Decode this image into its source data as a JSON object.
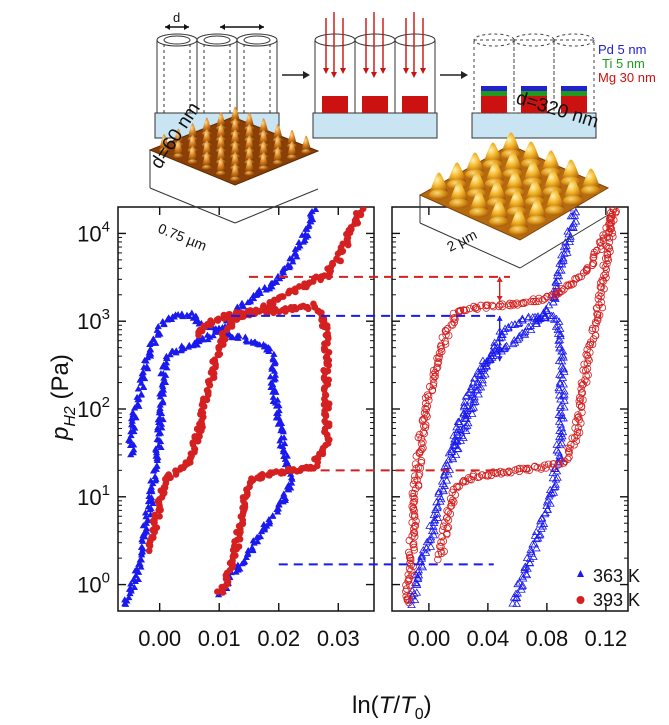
{
  "colors": {
    "series_363": "#1a1aee",
    "series_393": "#d42020",
    "pd": "#2222cc",
    "ti": "#1f9a1f",
    "mg": "#cc1111",
    "substrate": "#c9e4f2"
  },
  "schematic": {
    "d_label": "d",
    "layers": [
      "Pd 5 nm",
      "Ti 5 nm",
      "Mg 30 nm"
    ]
  },
  "afm": {
    "left": {
      "d_label": "d=60 nm",
      "scale_label": "0.75 µm"
    },
    "right": {
      "d_label": "d=320 nm",
      "scale_label": "2 µm"
    }
  },
  "chart_data": {
    "type": "scatter",
    "xlabel": "ln(T/T0)",
    "ylabel": "pH2 (Pa)",
    "y_scale": "log",
    "ylim": [
      0.5,
      20000
    ],
    "y_ticks": [
      {
        "value": 1,
        "mantissa": "10",
        "exp": "0"
      },
      {
        "value": 10,
        "mantissa": "10",
        "exp": "1"
      },
      {
        "value": 100,
        "mantissa": "10",
        "exp": "2"
      },
      {
        "value": 1000,
        "mantissa": "10",
        "exp": "3"
      },
      {
        "value": 10000,
        "mantissa": "10",
        "exp": "4"
      }
    ],
    "legend": [
      {
        "label": "363 K",
        "marker": "triangle"
      },
      {
        "label": "393 K",
        "marker": "circle"
      }
    ],
    "panels": [
      {
        "name": "d=60 nm",
        "marker_style": "filled",
        "xlim": [
          -0.007,
          0.036
        ],
        "x_ticks": [
          0.0,
          0.01,
          0.02,
          0.03
        ],
        "x_tick_labels": [
          "0.00",
          "0.01",
          "0.02",
          "0.03"
        ],
        "series": [
          {
            "temperature": "363 K",
            "hydrogenation": [
              [
                -0.006,
                0.6
              ],
              [
                -0.004,
                1.2
              ],
              [
                -0.003,
                2.5
              ],
              [
                -0.002,
                6
              ],
              [
                -0.001,
                15
              ],
              [
                0.0,
                50
              ],
              [
                0.0005,
                200
              ],
              [
                0.001,
                400
              ],
              [
                0.003,
                480
              ],
              [
                0.006,
                560
              ],
              [
                0.009,
                700
              ],
              [
                0.011,
                900
              ],
              [
                0.013,
                1300
              ],
              [
                0.015,
                1800
              ],
              [
                0.018,
                2400
              ],
              [
                0.02,
                3000
              ],
              [
                0.022,
                4500
              ],
              [
                0.024,
                8000
              ],
              [
                0.025,
                12000
              ],
              [
                0.026,
                20000
              ]
            ],
            "dehydrogenation": [
              [
                0.01,
                0.8
              ],
              [
                0.013,
                1.5
              ],
              [
                0.016,
                3
              ],
              [
                0.019,
                6
              ],
              [
                0.021,
                10
              ],
              [
                0.022,
                15
              ],
              [
                0.021,
                30
              ],
              [
                0.02,
                70
              ],
              [
                0.019,
                200
              ],
              [
                0.019,
                400
              ],
              [
                0.018,
                500
              ],
              [
                0.015,
                600
              ],
              [
                0.012,
                700
              ],
              [
                0.008,
                900
              ],
              [
                0.005,
                1200
              ],
              [
                0.002,
                1150
              ],
              [
                0.0,
                800
              ],
              [
                -0.002,
                400
              ],
              [
                -0.004,
                100
              ],
              [
                -0.005,
                30
              ]
            ]
          },
          {
            "temperature": "393 K",
            "hydrogenation": [
              [
                -0.002,
                2.5
              ],
              [
                0.0,
                8
              ],
              [
                0.001,
                15
              ],
              [
                0.002,
                18
              ],
              [
                0.003,
                20
              ],
              [
                0.005,
                25
              ],
              [
                0.007,
                70
              ],
              [
                0.008,
                150
              ],
              [
                0.009,
                300
              ],
              [
                0.011,
                800
              ],
              [
                0.013,
                1100
              ],
              [
                0.016,
                1300
              ],
              [
                0.019,
                1600
              ],
              [
                0.021,
                2000
              ],
              [
                0.024,
                2500
              ],
              [
                0.026,
                3000
              ],
              [
                0.028,
                3300
              ],
              [
                0.03,
                5000
              ],
              [
                0.032,
                10000
              ],
              [
                0.034,
                20000
              ]
            ],
            "dehydrogenation": [
              [
                0.01,
                0.8
              ],
              [
                0.012,
                1.5
              ],
              [
                0.013,
                3
              ],
              [
                0.014,
                8
              ],
              [
                0.015,
                15
              ],
              [
                0.018,
                18
              ],
              [
                0.022,
                20
              ],
              [
                0.026,
                22
              ],
              [
                0.028,
                40
              ],
              [
                0.028,
                150
              ],
              [
                0.028,
                400
              ],
              [
                0.028,
                800
              ],
              [
                0.027,
                1200
              ],
              [
                0.026,
                1500
              ],
              [
                0.023,
                1400
              ],
              [
                0.019,
                1300
              ],
              [
                0.015,
                1250
              ],
              [
                0.012,
                1200
              ],
              [
                0.009,
                1000
              ],
              [
                0.006,
                700
              ]
            ]
          }
        ]
      },
      {
        "name": "d=320 nm",
        "marker_style": "open",
        "xlim": [
          -0.025,
          0.135
        ],
        "x_ticks": [
          0.0,
          0.04,
          0.08,
          0.12
        ],
        "x_tick_labels": [
          "0.00",
          "0.04",
          "0.08",
          "0.12"
        ],
        "series": [
          {
            "temperature": "363 K",
            "hydrogenation": [
              [
                -0.012,
                0.6
              ],
              [
                -0.006,
                1.5
              ],
              [
                0.0,
                3
              ],
              [
                0.006,
                8
              ],
              [
                0.012,
                20
              ],
              [
                0.02,
                60
              ],
              [
                0.028,
                150
              ],
              [
                0.036,
                300
              ],
              [
                0.044,
                450
              ],
              [
                0.052,
                500
              ],
              [
                0.06,
                600
              ],
              [
                0.068,
                800
              ],
              [
                0.076,
                1100
              ],
              [
                0.082,
                1500
              ],
              [
                0.088,
                3000
              ],
              [
                0.094,
                8000
              ],
              [
                0.1,
                20000
              ]
            ],
            "dehydrogenation": [
              [
                0.058,
                0.6
              ],
              [
                0.066,
                1.5
              ],
              [
                0.072,
                3
              ],
              [
                0.078,
                6
              ],
              [
                0.084,
                12
              ],
              [
                0.088,
                30
              ],
              [
                0.09,
                100
              ],
              [
                0.09,
                400
              ],
              [
                0.089,
                800
              ],
              [
                0.086,
                1100
              ],
              [
                0.08,
                1150
              ],
              [
                0.07,
                1100
              ],
              [
                0.06,
                1000
              ],
              [
                0.05,
                800
              ],
              [
                0.04,
                350
              ],
              [
                0.032,
                150
              ],
              [
                0.024,
                60
              ],
              [
                0.016,
                30
              ]
            ]
          },
          {
            "temperature": "393 K",
            "hydrogenation": [
              [
                -0.015,
                0.6
              ],
              [
                -0.012,
                2
              ],
              [
                -0.01,
                8
              ],
              [
                -0.008,
                18
              ],
              [
                -0.005,
                50
              ],
              [
                0.0,
                150
              ],
              [
                0.006,
                350
              ],
              [
                0.012,
                700
              ],
              [
                0.016,
                1000
              ],
              [
                0.02,
                1300
              ],
              [
                0.04,
                1500
              ],
              [
                0.06,
                1600
              ],
              [
                0.08,
                1800
              ],
              [
                0.09,
                2200
              ],
              [
                0.1,
                3000
              ],
              [
                0.11,
                4500
              ],
              [
                0.12,
                10000
              ],
              [
                0.128,
                20000
              ]
            ],
            "dehydrogenation": [
              [
                0.008,
                2
              ],
              [
                0.012,
                5
              ],
              [
                0.016,
                10
              ],
              [
                0.022,
                15
              ],
              [
                0.03,
                17
              ],
              [
                0.04,
                18
              ],
              [
                0.06,
                20
              ],
              [
                0.08,
                22
              ],
              [
                0.092,
                25
              ],
              [
                0.1,
                50
              ],
              [
                0.104,
                150
              ],
              [
                0.108,
                400
              ],
              [
                0.112,
                800
              ],
              [
                0.116,
                1500
              ],
              [
                0.118,
                3000
              ],
              [
                0.122,
                8000
              ],
              [
                0.126,
                20000
              ]
            ]
          }
        ]
      }
    ],
    "annotations": [
      {
        "panel": 1,
        "type": "hline",
        "temperature": "393 K",
        "y": 3200,
        "x_start": 0.015,
        "x_end": 0.055
      },
      {
        "panel": 1,
        "type": "hline",
        "temperature": "363 K",
        "y": 1150,
        "x_start": 0.012,
        "x_end": 0.045
      },
      {
        "panel": 1,
        "type": "hline",
        "temperature": "393 K",
        "y": 20,
        "x_start": 0.022,
        "x_end": 0.048
      },
      {
        "panel": 1,
        "type": "hline",
        "temperature": "363 K",
        "y": 1.7,
        "x_start": 0.02,
        "x_end": 0.044
      },
      {
        "panel": 1,
        "type": "arrow",
        "temperature": "393 K",
        "x": 0.048,
        "y_from": 3200,
        "y_to": 1700
      },
      {
        "panel": 1,
        "type": "arrow",
        "temperature": "363 K",
        "x": 0.048,
        "y_from": 1150,
        "y_to": 350
      }
    ]
  }
}
